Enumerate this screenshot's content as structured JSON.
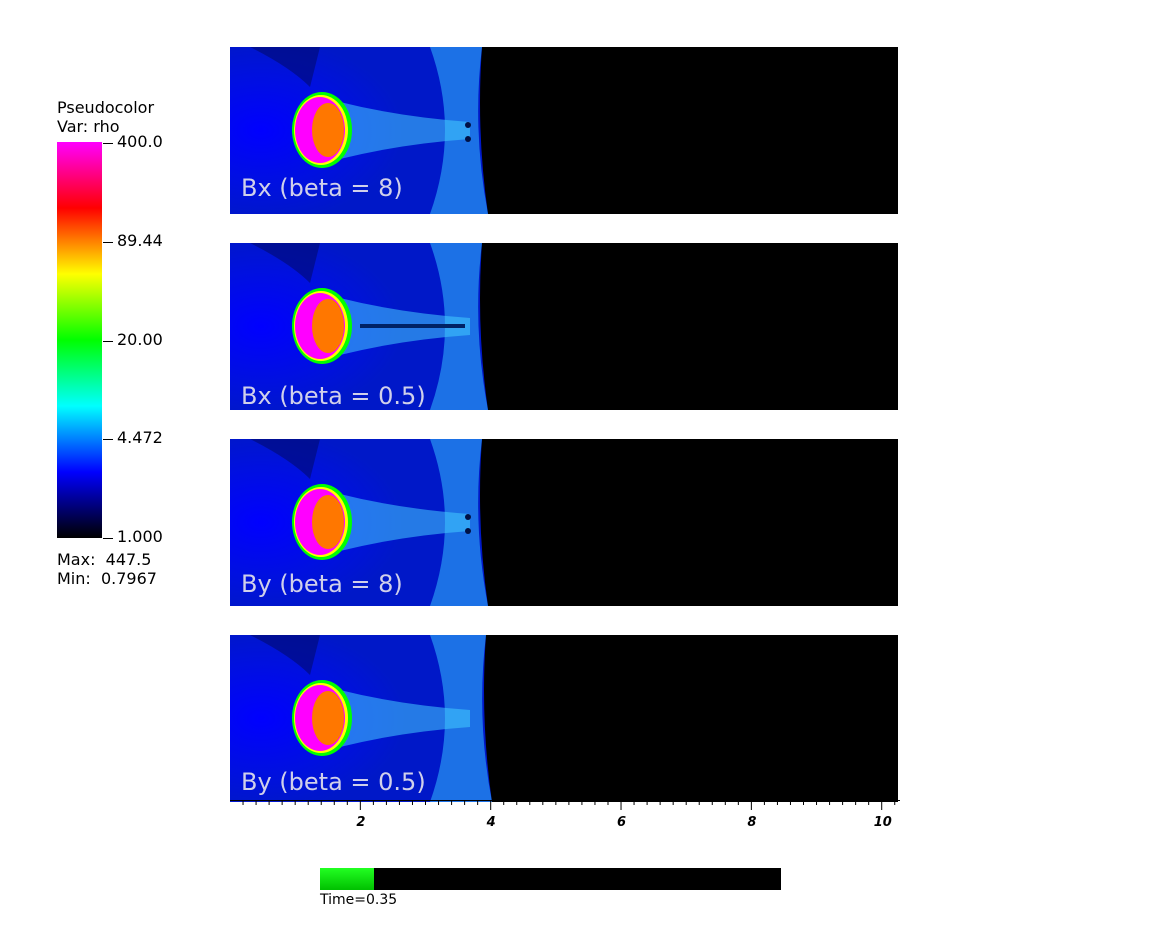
{
  "legend": {
    "title_line1": "Pseudocolor",
    "title_line2": "Var: rho",
    "ticks": [
      "400.0",
      "89.44",
      "20.00",
      "4.472",
      "1.000"
    ],
    "max_label": "Max:  447.5",
    "min_label": "Min:  0.7967",
    "colors": [
      "#ff00ff",
      "#ff0000",
      "#ffff00",
      "#00ff00",
      "#00ffff",
      "#0000ff",
      "#000000"
    ]
  },
  "panels": [
    {
      "label": "Bx (beta = 8)"
    },
    {
      "label": "Bx (beta = 0.5)"
    },
    {
      "label": "By (beta = 8)"
    },
    {
      "label": "By (beta = 0.5)"
    }
  ],
  "axis": {
    "tick_labels": [
      "2",
      "4",
      "6",
      "8",
      "10"
    ],
    "min": 0,
    "max": 10.25
  },
  "time": {
    "label": "Time=0.35",
    "progress": 0.118
  },
  "colors": {
    "field_blue": "#0000ff",
    "shock_cyan": "#33bbff",
    "blob_magenta": "#ff00ff",
    "blob_orange": "#ff7700",
    "rim_green": "#00ff00"
  }
}
